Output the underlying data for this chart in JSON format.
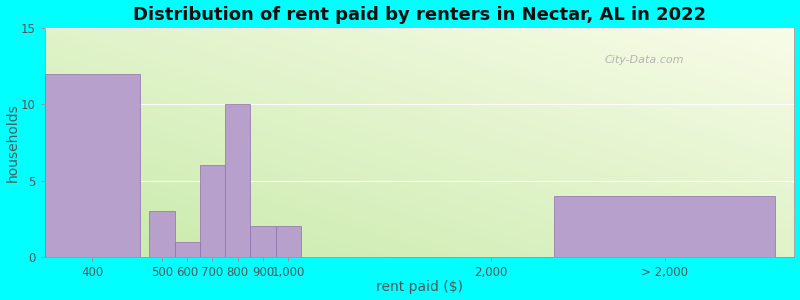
{
  "title": "Distribution of rent paid by renters in Nectar, AL in 2022",
  "xlabel": "rent paid ($)",
  "ylabel": "households",
  "ylim": [
    0,
    15
  ],
  "yticks": [
    0,
    5,
    10,
    15
  ],
  "heights": [
    12,
    3,
    1,
    6,
    10,
    2,
    2,
    4
  ],
  "bar_color": "#b8a0cc",
  "bar_edge_color": "#9070aa",
  "background_color": "#00ffff",
  "title_fontsize": 13,
  "axis_label_fontsize": 10,
  "tick_fontsize": 8.5,
  "watermark_text": "City-Data.com",
  "xtick_labels": [
    "400",
    "500600700800900 1,000",
    "2,000",
    "> 2,000"
  ]
}
